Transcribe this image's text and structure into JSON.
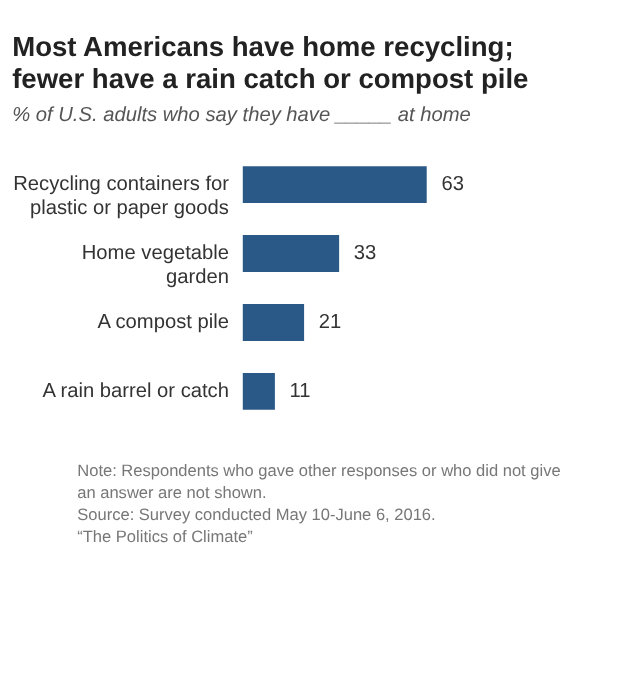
{
  "chart_data": {
    "type": "bar",
    "orientation": "horizontal",
    "title": "Most Americans have home recycling;\nfewer have a rain catch or compost pile",
    "subtitle": "% of U.S. adults who say they have _____ at home",
    "categories": [
      "Recycling containers for\nplastic or paper goods",
      "Home  vegetable\ngarden",
      "A compost pile",
      "A rain barrel or catch"
    ],
    "values": [
      63,
      33,
      21,
      11
    ],
    "color": "#2b5987",
    "data_labels": true,
    "annotations": [
      "Note: Respondents who gave other responses or who did not give\nan answer are not shown.",
      "Source: Survey conducted May 10-June 6, 2016.",
      "“The Politics of Climate”"
    ]
  }
}
